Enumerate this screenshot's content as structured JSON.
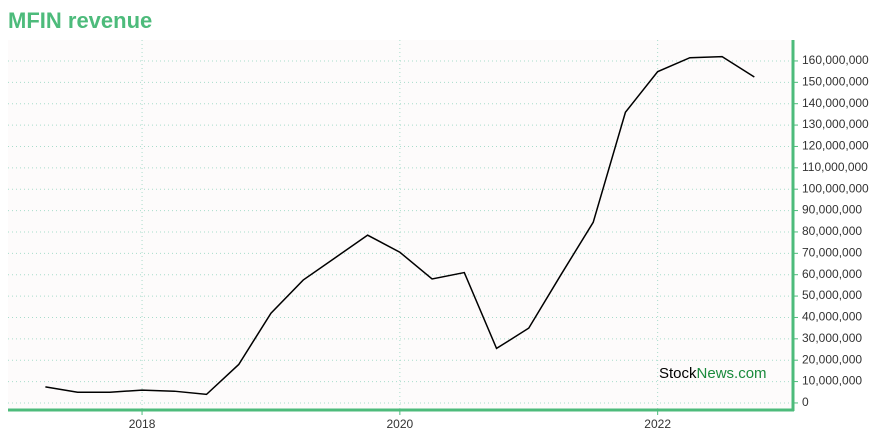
{
  "chart_data": {
    "type": "line",
    "title": "MFIN revenue",
    "x": [
      2017.25,
      2017.5,
      2017.75,
      2018,
      2018.25,
      2018.5,
      2018.75,
      2019,
      2019.25,
      2019.5,
      2019.75,
      2020,
      2020.25,
      2020.5,
      2020.75,
      2021,
      2021.25,
      2021.5,
      2021.75,
      2022,
      2022.25,
      2022.5,
      2022.75
    ],
    "series": [
      {
        "color": "#000000",
        "values": [
          7500000,
          5000000,
          5000000,
          6000000,
          5500000,
          4000000,
          18000000,
          42000000,
          57500000,
          68000000,
          78500000,
          70500000,
          58000000,
          61000000,
          25500000,
          35000000,
          60000000,
          84500000,
          136000000,
          155000000,
          161500000,
          162000000,
          152500000
        ]
      }
    ],
    "xlim": [
      2016.96,
      2023.05
    ],
    "xticks": [
      2018,
      2020,
      2022
    ],
    "ylim": [
      -3300000,
      169800000
    ],
    "yticks": [
      {
        "value": 0,
        "label": "0"
      },
      {
        "value": 10000000,
        "label": "10,000,000"
      },
      {
        "value": 20000000,
        "label": "20,000,000"
      },
      {
        "value": 30000000,
        "label": "30,000,000"
      },
      {
        "value": 40000000,
        "label": "40,000,000"
      },
      {
        "value": 50000000,
        "label": "50,000,000"
      },
      {
        "value": 60000000,
        "label": "60,000,000"
      },
      {
        "value": 70000000,
        "label": "70,000,000"
      },
      {
        "value": 80000000,
        "label": "80,000,000"
      },
      {
        "value": 90000000,
        "label": "90,000,000"
      },
      {
        "value": 100000000,
        "label": "100,000,000"
      },
      {
        "value": 110000000,
        "label": "110,000,000"
      },
      {
        "value": 120000000,
        "label": "120,000,000"
      },
      {
        "value": 130000000,
        "label": "130,000,000"
      },
      {
        "value": 140000000,
        "label": "140,000,000"
      },
      {
        "value": 150000000,
        "label": "150,000,000"
      },
      {
        "value": 160000000,
        "label": "160,000,000"
      }
    ],
    "grid": true,
    "axis_color": "#4dbb7b",
    "watermark": {
      "part1": "Stock",
      "part2": "News.com"
    }
  }
}
